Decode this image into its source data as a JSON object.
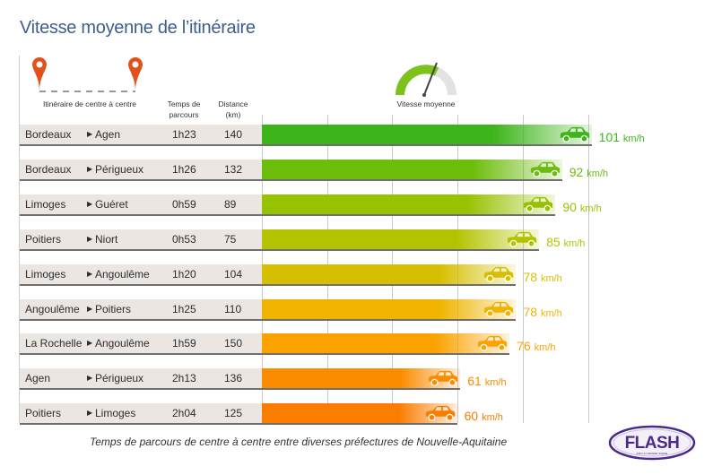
{
  "header": {
    "title": "Vitesse moyenne de l’itinéraire"
  },
  "columns": {
    "route": "Itinéraire de centre à centre",
    "time_line1": "Temps de",
    "time_line2": "parcours",
    "dist_line1": "Distance",
    "dist_line2": "(km)",
    "speed": "Vitesse moyenne"
  },
  "icons": {
    "pin": "map-pin-icon",
    "gauge": "speedometer-icon",
    "car": "car-icon",
    "arrow": "triangle-right-icon"
  },
  "caption": "Temps de parcours de centre à centre entre diverses préfectures de Nouvelle-Aquitaine",
  "logo": {
    "text": "FLASH",
    "tagline": "INFO & GRANDE SCENE",
    "colors": {
      "text": "#4a2a8a",
      "accent": "#e8b400"
    }
  },
  "colors": {
    "title": "#3e5d8c",
    "pin": "#e2511c",
    "gauge_fill": "#7cc21a",
    "gauge_track": "#e3e3e3",
    "row_band": "#ece6e2"
  },
  "chart_data": {
    "type": "bar",
    "orientation": "horizontal",
    "title": "Vitesse moyenne de l’itinéraire",
    "xlabel": "Vitesse moyenne",
    "unit": "km/h",
    "xlim": [
      0,
      100
    ],
    "grid": true,
    "rows": [
      {
        "from": "Bordeaux",
        "to": "Agen",
        "time": "1h23",
        "distance": 140,
        "speed": 101,
        "color": "#3db51a"
      },
      {
        "from": "Bordeaux",
        "to": "Périgueux",
        "time": "1h26",
        "distance": 132,
        "speed": 92,
        "color": "#6cbc0c"
      },
      {
        "from": "Limoges",
        "to": "Guéret",
        "time": "0h59",
        "distance": 89,
        "speed": 90,
        "color": "#97c200"
      },
      {
        "from": "Poitiers",
        "to": "Niort",
        "time": "0h53",
        "distance": 75,
        "speed": 85,
        "color": "#b3c300"
      },
      {
        "from": "Limoges",
        "to": "Angoulême",
        "time": "1h20",
        "distance": 104,
        "speed": 78,
        "color": "#d6bf00"
      },
      {
        "from": "Angoulême",
        "to": "Poitiers",
        "time": "1h25",
        "distance": 110,
        "speed": 78,
        "color": "#f0b400"
      },
      {
        "from": "La Rochelle",
        "to": "Angoulême",
        "time": "1h59",
        "distance": 150,
        "speed": 76,
        "color": "#fca200"
      },
      {
        "from": "Agen",
        "to": "Périgueux",
        "time": "2h13",
        "distance": 136,
        "speed": 61,
        "color": "#fb8c00"
      },
      {
        "from": "Poitiers",
        "to": "Limoges",
        "time": "2h04",
        "distance": 125,
        "speed": 60,
        "color": "#fa7d00"
      }
    ]
  }
}
